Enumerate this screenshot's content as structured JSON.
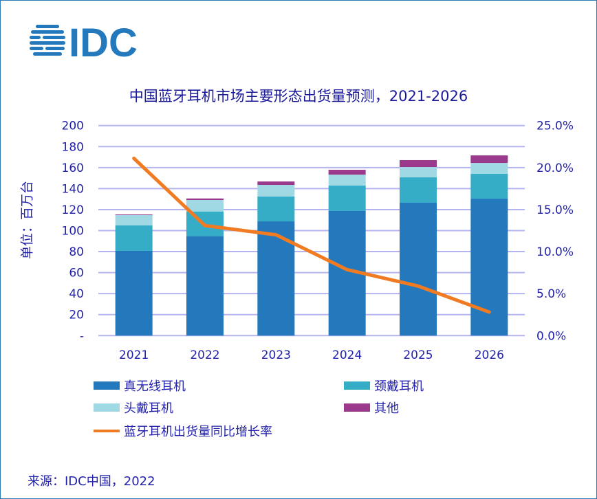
{
  "logo_text": "IDC",
  "chart_data": {
    "type": "bar+line",
    "title": "中国蓝牙耳机市场主要形态出货量预测，2021-2026",
    "ylabel": "单位：百万台",
    "categories": [
      "2021",
      "2022",
      "2023",
      "2024",
      "2025",
      "2026"
    ],
    "ylim": [
      0,
      200
    ],
    "yticks": [
      "-",
      "20",
      "40",
      "60",
      "80",
      "100",
      "120",
      "140",
      "160",
      "180",
      "200"
    ],
    "y2lim": [
      0,
      25
    ],
    "y2ticks": [
      "0.0%",
      "5.0%",
      "10.0%",
      "15.0%",
      "20.0%",
      "25.0%"
    ],
    "grid": true,
    "legend_position": "bottom",
    "series": [
      {
        "name": "真无线耳机",
        "type": "bar",
        "color": "#2379bc",
        "values": [
          80.7,
          94.7,
          108.8,
          118.9,
          126.5,
          130.4
        ]
      },
      {
        "name": "颈戴耳机",
        "type": "bar",
        "color": "#35adc7",
        "values": [
          24.2,
          23.5,
          23.6,
          24.0,
          24.2,
          23.6
        ]
      },
      {
        "name": "头戴耳机",
        "type": "bar",
        "color": "#a0d9e4",
        "values": [
          9.8,
          10.9,
          11.1,
          10.4,
          9.8,
          10.4
        ]
      },
      {
        "name": "其他",
        "type": "bar",
        "color": "#9b3a8c",
        "values": [
          0.7,
          1.5,
          3.3,
          4.6,
          6.6,
          7.2
        ]
      },
      {
        "name": "蓝牙耳机出货量同比增长率",
        "type": "line",
        "axis": "right",
        "color": "#f07b22",
        "values": [
          21.1,
          13.1,
          12.0,
          7.85,
          5.9,
          2.8
        ]
      }
    ]
  },
  "source": "来源：IDC中国，2022"
}
